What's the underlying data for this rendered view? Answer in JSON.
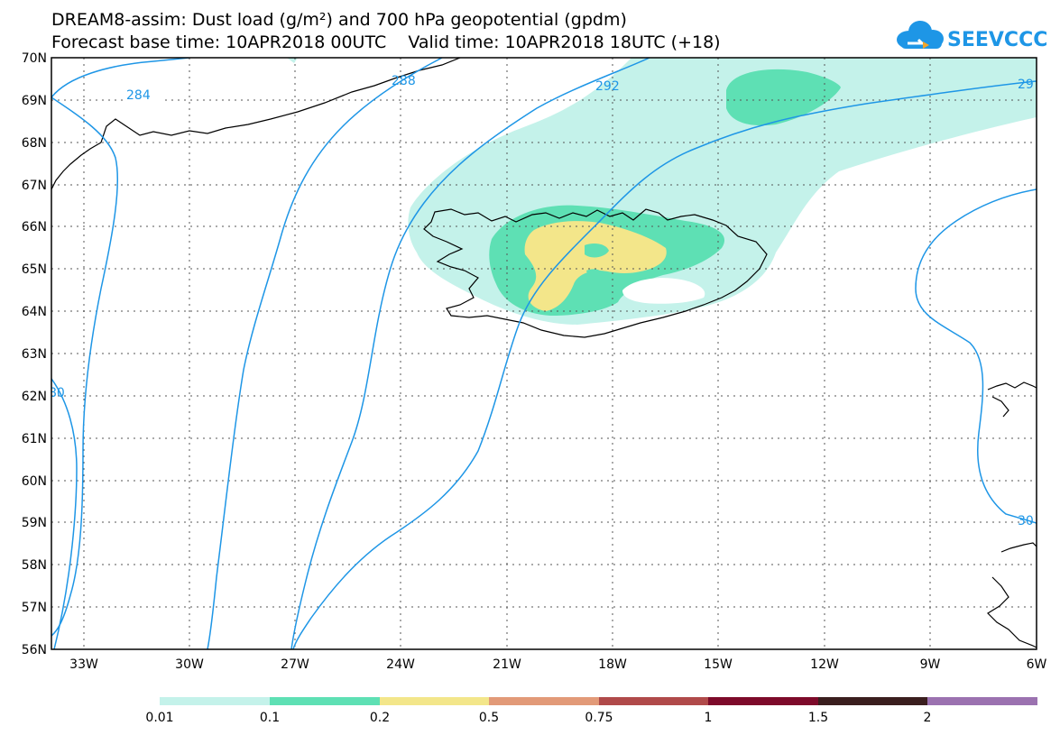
{
  "title": {
    "line1": "DREAM8-assim: Dust load (g/m²) and 700 hPa geopotential (gpdm)",
    "line2": "Forecast base time: 10APR2018 00UTC    Valid time: 10APR2018 18UTC (+18)"
  },
  "logo": {
    "text": "SEEVCCC",
    "icon": "cloud-logo-icon",
    "color": "#1e96e6"
  },
  "map": {
    "lat_labels": [
      "70N",
      "69N",
      "68N",
      "67N",
      "66N",
      "65N",
      "64N",
      "63N",
      "62N",
      "61N",
      "60N",
      "59N",
      "58N",
      "57N",
      "56N"
    ],
    "lon_labels": [
      "33W",
      "30W",
      "27W",
      "24W",
      "21W",
      "18W",
      "15W",
      "12W",
      "9W",
      "6W"
    ],
    "contour_labels": [
      "284",
      "288",
      "292",
      "29",
      "80",
      "30"
    ],
    "contour_color": "#1e96e6"
  },
  "colorbar": {
    "labels": [
      "0.01",
      "0.1",
      "0.2",
      "0.5",
      "0.75",
      "1",
      "1.5",
      "2"
    ],
    "colors": [
      "#c4f2ea",
      "#5ee0b4",
      "#f3e68a",
      "#e29a78",
      "#b04a4a",
      "#7d0a2a",
      "#3a1e1e",
      "#9b72b0"
    ]
  }
}
